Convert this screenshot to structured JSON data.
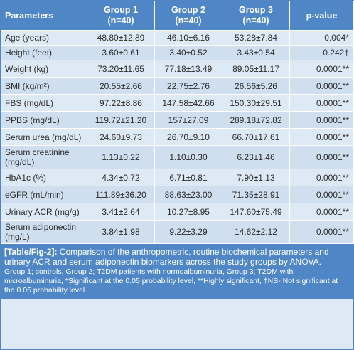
{
  "table": {
    "headers": {
      "parameters": "Parameters",
      "group1": "Group 1",
      "group1_n": "(n=40)",
      "group2": "Group 2",
      "group2_n": "(n=40)",
      "group3": "Group 3",
      "group3_n": "(n=40)",
      "pvalue": "p-value"
    },
    "rows": [
      {
        "param": "Age (years)",
        "g1": "48.80±12.89",
        "g2": "46.10±6.16",
        "g3": "53.28±7.84",
        "p": "0.004*"
      },
      {
        "param": "Height (feet)",
        "g1": "3.60±0.61",
        "g2": "3.40±0.52",
        "g3": "3.43±0.54",
        "p": "0.242†"
      },
      {
        "param": "Weight (kg)",
        "g1": "73.20±11.65",
        "g2": "77.18±13.49",
        "g3": "89.05±11.17",
        "p": "0.0001**"
      },
      {
        "param": "BMI (kg/m²)",
        "g1": "20.55±2.66",
        "g2": "22.75±2.76",
        "g3": "26.56±5.26",
        "p": "0.0001**"
      },
      {
        "param": "FBS (mg/dL)",
        "g1": "97.22±8.86",
        "g2": "147.58±42.66",
        "g3": "150.30±29.51",
        "p": "0.0001**"
      },
      {
        "param": "PPBS (mg/dL)",
        "g1": "119.72±21.20",
        "g2": "157±27.09",
        "g3": "289.18±72.82",
        "p": "0.0001**"
      },
      {
        "param": "Serum urea (mg/dL)",
        "g1": "24.60±9.73",
        "g2": "26.70±9.10",
        "g3": "66.70±17.61",
        "p": "0.0001**"
      },
      {
        "param": "Serum creatinine (mg/dL)",
        "g1": "1.13±0.22",
        "g2": "1.10±0.30",
        "g3": "6.23±1.46",
        "p": "0.0001**"
      },
      {
        "param": "HbA1c (%)",
        "g1": "4.34±0.72",
        "g2": "6.71±0.81",
        "g3": "7.90±1.13",
        "p": "0.0001**"
      },
      {
        "param": "eGFR (mL/min)",
        "g1": "111.89±36.20",
        "g2": "88.63±23.00",
        "g3": "71.35±28.91",
        "p": "0.0001**"
      },
      {
        "param": "Urinary ACR (mg/g)",
        "g1": "3.41±2.64",
        "g2": "10.27±8.95",
        "g3": "147.60±75.49",
        "p": "0.0001**"
      },
      {
        "param": "Serum adiponectin (mg/L)",
        "g1": "3.84±1.98",
        "g2": "9.22±3.29",
        "g3": "14.62±2.12",
        "p": "0.0001**"
      }
    ]
  },
  "caption": {
    "label": "[Table/Fig-2]:",
    "text": " Comparison of the anthropometric, routine biochemical parameters and urinary ACR and serum adiponectin biomarkers across the study groups by ANOVA.",
    "note": "Group 1; controls, Group 2; T2DM patients with normoalbuminuria, Group 3; T2DM with microalbuminuria, *Significant at the 0.05 probability level, **Highly significant, †NS- Not significant at the 0.05 probability level"
  },
  "colors": {
    "header_bg": "#4f86c6",
    "row_bg": "#dde9f5",
    "row_alt_bg": "#cfdff0"
  }
}
